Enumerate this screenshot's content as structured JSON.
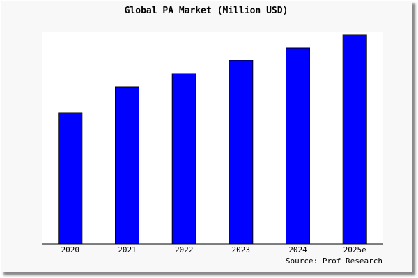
{
  "chart_data": {
    "type": "bar",
    "title": "Global PA Market (Million USD)",
    "categories": [
      "2020",
      "2021",
      "2022",
      "2023",
      "2024",
      "2025e"
    ],
    "values": [
      189,
      226,
      245,
      264,
      282,
      301
    ],
    "ylim": [
      0,
      301
    ],
    "xlabel": "",
    "ylabel": "",
    "y_axis_shown": false,
    "grid": false,
    "bar_color": "#0000ff",
    "source": "Source: Prof Research"
  }
}
